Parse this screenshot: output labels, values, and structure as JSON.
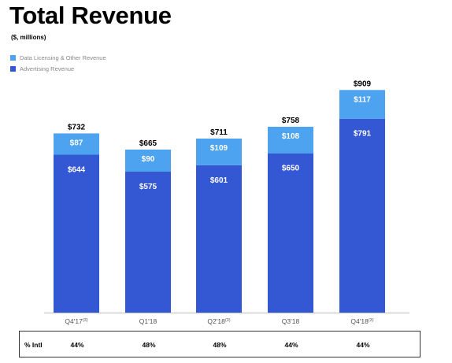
{
  "title": "Total Revenue",
  "subtitle": "($, millions)",
  "colors": {
    "data_licensing": "#4da3f0",
    "advertising": "#3458d4"
  },
  "chart_data": {
    "type": "bar",
    "stacked": true,
    "categories": [
      "Q4'17",
      "Q1'18",
      "Q2'18",
      "Q3'18",
      "Q4'18"
    ],
    "category_superscripts": [
      "(3)",
      "",
      "(3)",
      "",
      "(3)"
    ],
    "series": [
      {
        "name": "Advertising Revenue",
        "values": [
          644,
          575,
          601,
          650,
          791
        ],
        "labels": [
          "$644",
          "$575",
          "$601",
          "$650",
          "$791"
        ]
      },
      {
        "name": "Data Licensing & Other Revenue",
        "values": [
          87,
          90,
          109,
          108,
          117
        ],
        "labels": [
          "$87",
          "$90",
          "$109",
          "$108",
          "$117"
        ]
      }
    ],
    "totals": [
      732,
      665,
      711,
      758,
      909
    ],
    "total_labels": [
      "$732",
      "$665",
      "$711",
      "$758",
      "$909"
    ],
    "ylim": [
      0,
      909
    ],
    "grid": false,
    "legend_position": "top-left"
  },
  "intl": {
    "label": "% Intl",
    "values": [
      "44%",
      "48%",
      "48%",
      "44%",
      "44%"
    ]
  }
}
